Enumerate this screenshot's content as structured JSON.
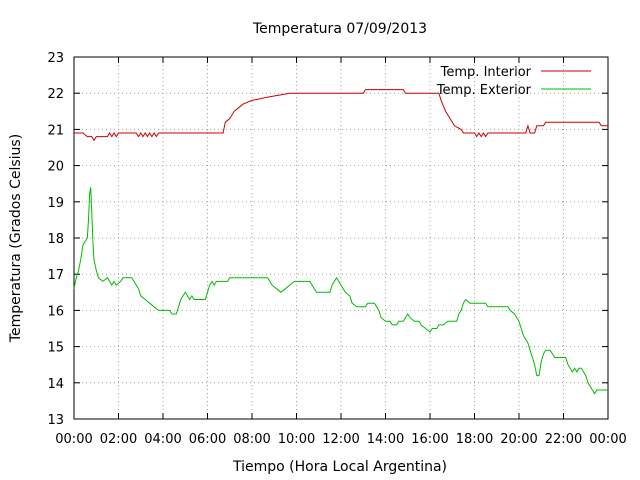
{
  "chart_data": {
    "type": "line",
    "title": "Temperatura 07/09/2013",
    "xlabel": "Tiempo (Hora Local Argentina)",
    "ylabel": "Temperatura (Grados Celsius)",
    "xlim": [
      0,
      24
    ],
    "ylim": [
      13,
      23
    ],
    "x_ticks": [
      "00:00",
      "02:00",
      "04:00",
      "06:00",
      "08:00",
      "10:00",
      "12:00",
      "14:00",
      "16:00",
      "18:00",
      "20:00",
      "22:00",
      "00:00"
    ],
    "y_ticks": [
      "13",
      "14",
      "15",
      "16",
      "17",
      "18",
      "19",
      "20",
      "21",
      "22",
      "23"
    ],
    "grid": true,
    "legend_position": "top-right",
    "series": [
      {
        "name": "Temp. Interior",
        "color": "#cc0000",
        "points": [
          [
            0.0,
            20.9
          ],
          [
            0.4,
            20.9
          ],
          [
            0.6,
            20.8
          ],
          [
            0.8,
            20.8
          ],
          [
            0.9,
            20.7
          ],
          [
            1.0,
            20.8
          ],
          [
            1.5,
            20.8
          ],
          [
            1.6,
            20.9
          ],
          [
            1.7,
            20.8
          ],
          [
            1.8,
            20.9
          ],
          [
            1.9,
            20.8
          ],
          [
            2.0,
            20.9
          ],
          [
            2.8,
            20.9
          ],
          [
            2.9,
            20.8
          ],
          [
            3.0,
            20.9
          ],
          [
            3.1,
            20.8
          ],
          [
            3.2,
            20.9
          ],
          [
            3.3,
            20.8
          ],
          [
            3.4,
            20.9
          ],
          [
            3.5,
            20.8
          ],
          [
            3.6,
            20.9
          ],
          [
            3.7,
            20.8
          ],
          [
            3.8,
            20.9
          ],
          [
            6.7,
            20.9
          ],
          [
            6.8,
            21.2
          ],
          [
            7.0,
            21.3
          ],
          [
            7.2,
            21.5
          ],
          [
            7.4,
            21.6
          ],
          [
            7.6,
            21.7
          ],
          [
            8.0,
            21.8
          ],
          [
            8.8,
            21.9
          ],
          [
            9.7,
            22.0
          ],
          [
            13.0,
            22.0
          ],
          [
            13.1,
            22.1
          ],
          [
            14.8,
            22.1
          ],
          [
            14.9,
            22.0
          ],
          [
            16.4,
            22.0
          ],
          [
            16.5,
            21.8
          ],
          [
            16.7,
            21.5
          ],
          [
            16.9,
            21.3
          ],
          [
            17.1,
            21.1
          ],
          [
            17.4,
            21.0
          ],
          [
            17.5,
            20.9
          ],
          [
            18.0,
            20.9
          ],
          [
            18.1,
            20.8
          ],
          [
            18.2,
            20.9
          ],
          [
            18.3,
            20.8
          ],
          [
            18.4,
            20.9
          ],
          [
            18.5,
            20.8
          ],
          [
            18.6,
            20.9
          ],
          [
            20.3,
            20.9
          ],
          [
            20.4,
            21.1
          ],
          [
            20.5,
            20.9
          ],
          [
            20.7,
            20.9
          ],
          [
            20.8,
            21.1
          ],
          [
            21.1,
            21.1
          ],
          [
            21.2,
            21.2
          ],
          [
            23.6,
            21.2
          ],
          [
            23.7,
            21.1
          ],
          [
            24.0,
            21.1
          ]
        ]
      },
      {
        "name": "Temp. Exterior",
        "color": "#00bb00",
        "points": [
          [
            0.0,
            16.6
          ],
          [
            0.1,
            16.9
          ],
          [
            0.2,
            17.1
          ],
          [
            0.3,
            17.4
          ],
          [
            0.4,
            17.8
          ],
          [
            0.5,
            17.9
          ],
          [
            0.6,
            18.0
          ],
          [
            0.65,
            18.5
          ],
          [
            0.7,
            19.2
          ],
          [
            0.75,
            19.4
          ],
          [
            0.8,
            18.7
          ],
          [
            0.85,
            17.9
          ],
          [
            0.9,
            17.4
          ],
          [
            1.0,
            17.1
          ],
          [
            1.1,
            16.9
          ],
          [
            1.3,
            16.8
          ],
          [
            1.5,
            16.9
          ],
          [
            1.6,
            16.8
          ],
          [
            1.7,
            16.7
          ],
          [
            1.8,
            16.8
          ],
          [
            1.9,
            16.7
          ],
          [
            2.1,
            16.8
          ],
          [
            2.2,
            16.9
          ],
          [
            2.6,
            16.9
          ],
          [
            2.8,
            16.7
          ],
          [
            2.9,
            16.6
          ],
          [
            3.0,
            16.4
          ],
          [
            3.2,
            16.3
          ],
          [
            3.4,
            16.2
          ],
          [
            3.6,
            16.1
          ],
          [
            3.8,
            16.0
          ],
          [
            4.3,
            16.0
          ],
          [
            4.4,
            15.9
          ],
          [
            4.6,
            15.9
          ],
          [
            4.7,
            16.1
          ],
          [
            4.8,
            16.3
          ],
          [
            4.9,
            16.4
          ],
          [
            5.0,
            16.5
          ],
          [
            5.1,
            16.4
          ],
          [
            5.2,
            16.3
          ],
          [
            5.3,
            16.4
          ],
          [
            5.4,
            16.3
          ],
          [
            5.9,
            16.3
          ],
          [
            6.0,
            16.5
          ],
          [
            6.1,
            16.7
          ],
          [
            6.2,
            16.8
          ],
          [
            6.3,
            16.7
          ],
          [
            6.4,
            16.8
          ],
          [
            6.9,
            16.8
          ],
          [
            7.0,
            16.9
          ],
          [
            8.7,
            16.9
          ],
          [
            8.8,
            16.8
          ],
          [
            8.9,
            16.7
          ],
          [
            9.1,
            16.6
          ],
          [
            9.3,
            16.5
          ],
          [
            9.5,
            16.6
          ],
          [
            9.7,
            16.7
          ],
          [
            9.9,
            16.8
          ],
          [
            10.6,
            16.8
          ],
          [
            10.7,
            16.7
          ],
          [
            10.8,
            16.6
          ],
          [
            10.9,
            16.5
          ],
          [
            11.5,
            16.5
          ],
          [
            11.6,
            16.7
          ],
          [
            11.7,
            16.8
          ],
          [
            11.8,
            16.9
          ],
          [
            11.9,
            16.8
          ],
          [
            12.0,
            16.7
          ],
          [
            12.2,
            16.5
          ],
          [
            12.4,
            16.4
          ],
          [
            12.5,
            16.2
          ],
          [
            12.7,
            16.1
          ],
          [
            13.1,
            16.1
          ],
          [
            13.2,
            16.2
          ],
          [
            13.5,
            16.2
          ],
          [
            13.6,
            16.1
          ],
          [
            13.7,
            16.0
          ],
          [
            13.8,
            15.8
          ],
          [
            14.0,
            15.7
          ],
          [
            14.2,
            15.7
          ],
          [
            14.3,
            15.6
          ],
          [
            14.5,
            15.6
          ],
          [
            14.6,
            15.7
          ],
          [
            14.8,
            15.7
          ],
          [
            14.9,
            15.8
          ],
          [
            15.0,
            15.9
          ],
          [
            15.1,
            15.8
          ],
          [
            15.3,
            15.7
          ],
          [
            15.5,
            15.7
          ],
          [
            15.6,
            15.6
          ],
          [
            15.8,
            15.5
          ],
          [
            16.0,
            15.4
          ],
          [
            16.1,
            15.5
          ],
          [
            16.3,
            15.5
          ],
          [
            16.4,
            15.6
          ],
          [
            16.6,
            15.6
          ],
          [
            16.8,
            15.7
          ],
          [
            17.2,
            15.7
          ],
          [
            17.3,
            15.9
          ],
          [
            17.4,
            16.0
          ],
          [
            17.5,
            16.2
          ],
          [
            17.6,
            16.3
          ],
          [
            17.8,
            16.2
          ],
          [
            18.5,
            16.2
          ],
          [
            18.6,
            16.1
          ],
          [
            19.5,
            16.1
          ],
          [
            19.6,
            16.0
          ],
          [
            19.8,
            15.9
          ],
          [
            19.9,
            15.8
          ],
          [
            20.0,
            15.7
          ],
          [
            20.1,
            15.5
          ],
          [
            20.2,
            15.3
          ],
          [
            20.3,
            15.2
          ],
          [
            20.4,
            15.1
          ],
          [
            20.5,
            14.9
          ],
          [
            20.6,
            14.7
          ],
          [
            20.7,
            14.5
          ],
          [
            20.8,
            14.2
          ],
          [
            20.9,
            14.2
          ],
          [
            21.0,
            14.6
          ],
          [
            21.1,
            14.8
          ],
          [
            21.2,
            14.9
          ],
          [
            21.4,
            14.9
          ],
          [
            21.5,
            14.8
          ],
          [
            21.6,
            14.7
          ],
          [
            22.1,
            14.7
          ],
          [
            22.2,
            14.5
          ],
          [
            22.3,
            14.4
          ],
          [
            22.4,
            14.3
          ],
          [
            22.5,
            14.4
          ],
          [
            22.6,
            14.3
          ],
          [
            22.7,
            14.4
          ],
          [
            22.8,
            14.4
          ],
          [
            22.9,
            14.3
          ],
          [
            23.0,
            14.2
          ],
          [
            23.1,
            14.0
          ],
          [
            23.2,
            13.9
          ],
          [
            23.3,
            13.8
          ],
          [
            23.4,
            13.7
          ],
          [
            23.5,
            13.8
          ],
          [
            24.0,
            13.8
          ]
        ]
      }
    ]
  }
}
